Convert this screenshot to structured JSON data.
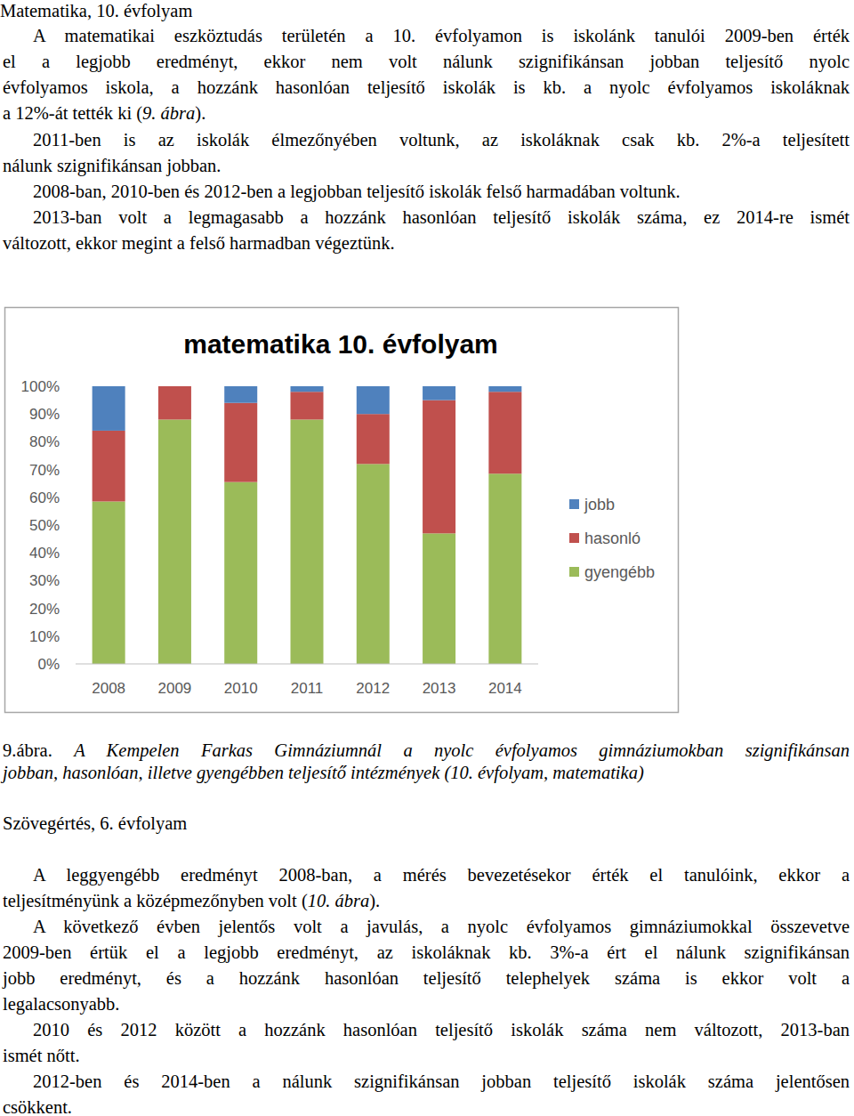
{
  "document": {
    "header": "Matematika, 10. évfolyam",
    "paragraphs_top": [
      [
        [
          "A matematikai eszköztudás területén a 10. évfolyamon is iskolánk tanulói 2009-ben érték"
        ],
        [
          "el a legjobb eredményt, ekkor nem volt nálunk szignifikánsan jobban teljesítő nyolc"
        ],
        [
          "évfolyamos iskola, a hozzánk hasonlóan teljesítő iskolák is kb. a nyolc évfolyamos iskoláknak"
        ],
        [
          "a 12%-át tették ki (",
          {
            "italic": "9. ábra"
          },
          ")."
        ]
      ],
      [
        [
          "2011-ben is az iskolák élmezőnyében voltunk, az iskoláknak csak kb. 2%-a teljesített"
        ],
        [
          "nálunk szignifikánsan jobban."
        ]
      ],
      [
        [
          "2008-ban, 2010-ben és 2012-ben a legjobban teljesítő iskolák felső harmadában voltunk."
        ]
      ],
      [
        [
          "2013-ban volt a legmagasabb a hozzánk hasonlóan teljesítő iskolák száma, ez 2014-re ismét"
        ],
        [
          "változott, ekkor megint a felső harmadban végeztünk."
        ]
      ]
    ],
    "caption": [
      [
        "9.ábra. ",
        {
          "italic": "A Kempelen Farkas Gimnáziumnál a nyolc évfolyamos gimnáziumokban szignifikánsan"
        }
      ],
      [
        {
          "italic": "jobban, hasonlóan, illetve gyengébben teljesítő intézmények (10. évfolyam, matematika)"
        }
      ]
    ],
    "heading": "Szövegértés, 6. évfolyam",
    "paragraphs_bottom": [
      [
        [
          "A leggyengébb eredményt 2008-ban, a mérés bevezetésekor érték el tanulóink, ekkor a"
        ],
        [
          "teljesítményünk a középmezőnyben volt (",
          {
            "italic": "10. ábra"
          },
          ")."
        ]
      ],
      [
        [
          "A következő évben jelentős volt a javulás, a nyolc évfolyamos gimnáziumokkal összevetve"
        ],
        [
          "2009-ben értük el a legjobb eredményt, az iskoláknak kb. 3%-a ért el nálunk szignifikánsan"
        ],
        [
          "jobb eredményt, és a hozzánk hasonlóan teljesítő telephelyek száma is ekkor volt a"
        ],
        [
          "legalacsonyabb."
        ]
      ],
      [
        [
          "2010 és 2012 között a hozzánk hasonlóan teljesítő iskolák száma nem változott, 2013-ban"
        ],
        [
          "ismét nőtt."
        ]
      ],
      [
        [
          "2012-ben és 2014-ben a nálunk szignifikánsan jobban teljesítő iskolák száma jelentősen"
        ],
        [
          "csökkent."
        ]
      ]
    ]
  },
  "chart_data": {
    "type": "bar",
    "stacked": true,
    "title": "matematika 10. évfolyam",
    "categories": [
      "2008",
      "2009",
      "2010",
      "2011",
      "2012",
      "2013",
      "2014"
    ],
    "series": [
      {
        "name": "gyengébb",
        "color": "#9bbb59",
        "values": [
          58.5,
          88,
          65.5,
          88,
          72,
          47,
          68.5
        ]
      },
      {
        "name": "hasonló",
        "color": "#c0504d",
        "values": [
          25.5,
          12,
          28.5,
          10,
          18,
          48,
          29.5
        ]
      },
      {
        "name": "jobb",
        "color": "#4f81bd",
        "values": [
          16,
          0,
          6,
          2,
          10,
          5,
          2
        ]
      }
    ],
    "ylim": [
      0,
      100
    ],
    "yticks": [
      {
        "value": 0,
        "label": "0%"
      },
      {
        "value": 10,
        "label": "10%"
      },
      {
        "value": 20,
        "label": "20%"
      },
      {
        "value": 30,
        "label": "30%"
      },
      {
        "value": 40,
        "label": "40%"
      },
      {
        "value": 50,
        "label": "50%"
      },
      {
        "value": 60,
        "label": "60%"
      },
      {
        "value": 70,
        "label": "70%"
      },
      {
        "value": 80,
        "label": "80%"
      },
      {
        "value": 90,
        "label": "90%"
      },
      {
        "value": 100,
        "label": "100%"
      }
    ],
    "grid": false,
    "legend": "right"
  }
}
